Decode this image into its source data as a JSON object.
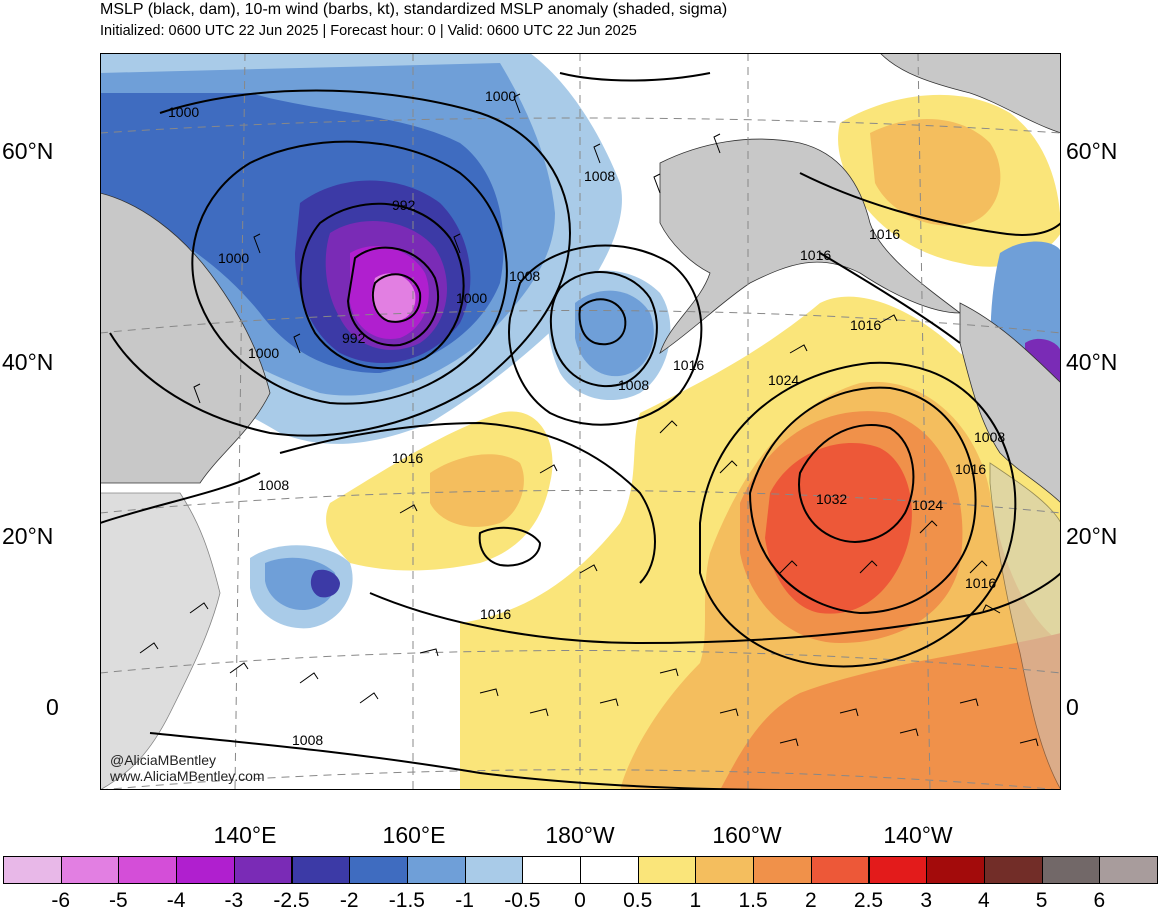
{
  "header": {
    "title": "MSLP (black, dam), 10-m wind (barbs, kt), standardized MSLP anomaly (shaded, sigma)",
    "subtitle": "Initialized: 0600 UTC 22 Jun 2025 | Forecast hour: 0 | Valid: 0600 UTC 22 Jun 2025"
  },
  "map": {
    "lat_labels": [
      "60°N",
      "40°N",
      "20°N",
      "0"
    ],
    "lon_labels": [
      "140°E",
      "160°E",
      "180°W",
      "160°W",
      "140°W"
    ],
    "contour_labels": [
      "1000",
      "1000",
      "1000",
      "1000",
      "1000",
      "992",
      "992",
      "1008",
      "1008",
      "1008",
      "1016",
      "1016",
      "1016",
      "1016",
      "1024",
      "1032",
      "1024",
      "1008",
      "1016",
      "1016",
      "1016",
      "1008",
      "1008"
    ],
    "colors": {
      "land": "#c8c8c8",
      "ocean": "#ffffff",
      "contour": "#000000"
    }
  },
  "credits": {
    "handle": "@AliciaMBentley",
    "site": "www.AliciaMBentley.com"
  },
  "colorbar": {
    "labels": [
      "-6",
      "-5",
      "-4",
      "-3",
      "-2.5",
      "-2",
      "-1.5",
      "-1",
      "-0.5",
      "0",
      "0.5",
      "1",
      "1.5",
      "2",
      "2.5",
      "3",
      "4",
      "5",
      "6"
    ],
    "colors": [
      "#e8b8e8",
      "#e27fe2",
      "#d44ed8",
      "#b01fcf",
      "#7a2bb6",
      "#3c3aa6",
      "#3f6cc0",
      "#6f9fd8",
      "#a9cbe8",
      "#ffffff",
      "#ffffff",
      "#fae57a",
      "#f4be5e",
      "#f0914a",
      "#ed5838",
      "#e31b1b",
      "#a30b0b",
      "#722d28",
      "#726868",
      "#a89c9c"
    ]
  }
}
